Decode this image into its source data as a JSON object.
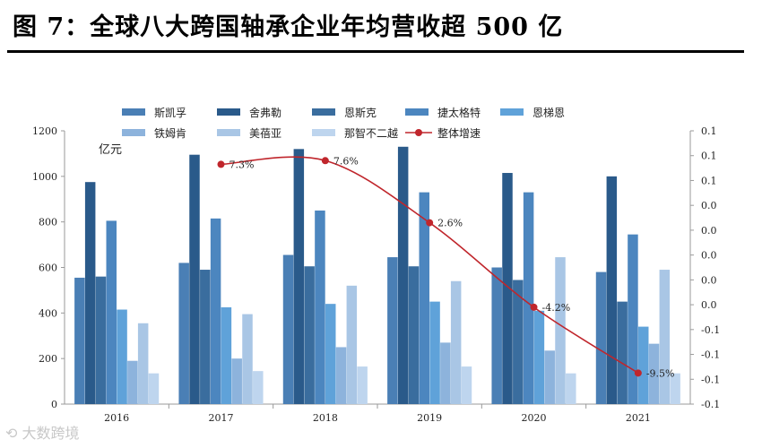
{
  "figure_title": "图 7：全球八大跨国轴承企业年均营收超 500 亿",
  "watermark": "大数跨境",
  "colors": {
    "斯凯孚": "#4a7fb5",
    "舍弗勒": "#2a5a8a",
    "恩斯克": "#3a6d9e",
    "捷太格特": "#4c86bf",
    "恩梯恩": "#5fa2d9",
    "铁姆肯": "#8db3dc",
    "美蓓亚": "#a9c6e5",
    "那智不二越": "#bed5ee",
    "growth_line": "#c0262c",
    "axis": "#9a9a9a"
  },
  "chart_data": {
    "type": "bar",
    "categories": [
      "2016",
      "2017",
      "2018",
      "2019",
      "2020",
      "2021"
    ],
    "series": [
      {
        "name": "斯凯孚",
        "values": [
          555,
          620,
          655,
          645,
          600,
          580
        ]
      },
      {
        "name": "舍弗勒",
        "values": [
          975,
          1095,
          1120,
          1130,
          1015,
          1000
        ]
      },
      {
        "name": "恩斯克",
        "values": [
          560,
          590,
          605,
          605,
          545,
          450
        ]
      },
      {
        "name": "捷太格特",
        "values": [
          805,
          815,
          850,
          930,
          930,
          745
        ]
      },
      {
        "name": "恩梯恩",
        "values": [
          415,
          425,
          440,
          450,
          410,
          340
        ]
      },
      {
        "name": "铁姆肯",
        "values": [
          190,
          200,
          250,
          270,
          235,
          265
        ]
      },
      {
        "name": "美蓓亚",
        "values": [
          355,
          395,
          520,
          540,
          645,
          590
        ]
      },
      {
        "name": "那智不二越",
        "values": [
          135,
          145,
          165,
          165,
          135,
          135
        ]
      }
    ],
    "line_series": {
      "name": "整体增速",
      "points": [
        {
          "category": "2017",
          "value": 7.3,
          "label": "7.3%"
        },
        {
          "category": "2018",
          "value": 7.6,
          "label": "7.6%"
        },
        {
          "category": "2019",
          "value": 2.6,
          "label": "2.6%"
        },
        {
          "category": "2020",
          "value": -4.2,
          "label": "-4.2%"
        },
        {
          "category": "2021",
          "value": -9.5,
          "label": "-9.5%"
        }
      ]
    },
    "y_unit_label": "亿元",
    "y_left": {
      "min": 0,
      "max": 1200,
      "ticks": [
        "0",
        "200",
        "400",
        "600",
        "800",
        "1000",
        "1200"
      ]
    },
    "y_right": {
      "min": -0.12,
      "max": 0.1,
      "ticks": [
        "-0.1",
        "-0.1",
        "-0.1",
        "-0.1",
        "0.0",
        "0.0",
        "0.0",
        "0.0",
        "0.0",
        "0.1",
        "0.1",
        "0.1"
      ]
    },
    "legend_position": "top"
  }
}
